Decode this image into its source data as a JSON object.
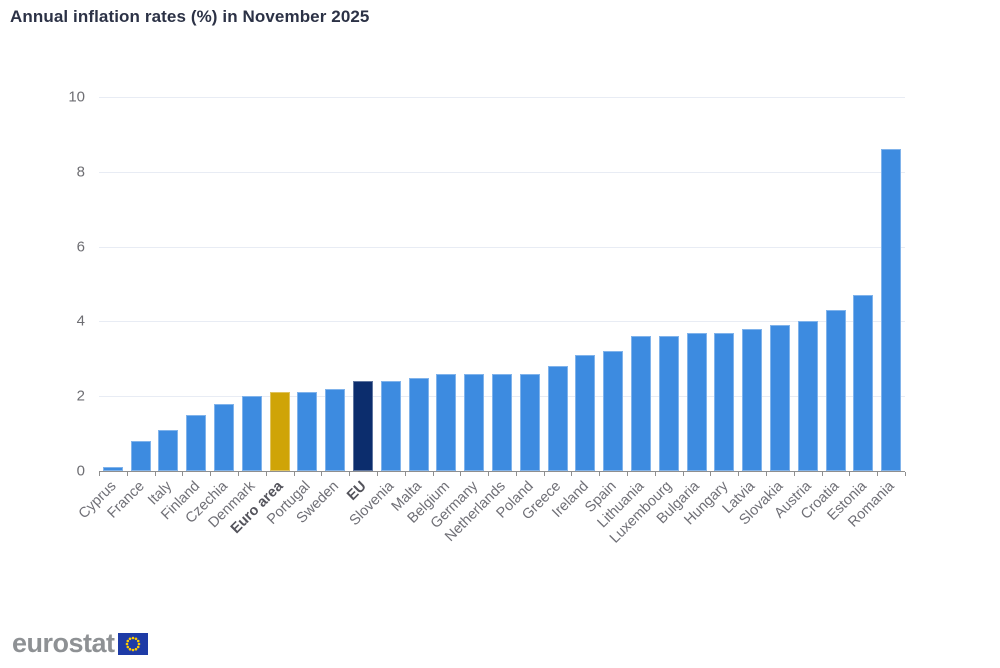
{
  "chart_data": {
    "type": "bar",
    "title": "Annual inflation rates (%) in November 2025",
    "categories": [
      "Cyprus",
      "France",
      "Italy",
      "Finland",
      "Czechia",
      "Denmark",
      "Euro area",
      "Portugal",
      "Sweden",
      "EU",
      "Slovenia",
      "Malta",
      "Belgium",
      "Germany",
      "Netherlands",
      "Poland",
      "Greece",
      "Ireland",
      "Spain",
      "Lithuania",
      "Luxembourg",
      "Bulgaria",
      "Hungary",
      "Latvia",
      "Slovakia",
      "Austria",
      "Croatia",
      "Estonia",
      "Romania"
    ],
    "values": [
      0.1,
      0.8,
      1.1,
      1.5,
      1.8,
      2.0,
      2.1,
      2.1,
      2.2,
      2.4,
      2.4,
      2.5,
      2.6,
      2.6,
      2.6,
      2.6,
      2.8,
      3.1,
      3.2,
      3.6,
      3.6,
      3.7,
      3.7,
      3.8,
      3.9,
      4.0,
      4.3,
      4.7,
      8.6
    ],
    "ylim": [
      0,
      10
    ],
    "yticks": [
      0,
      2,
      4,
      6,
      8,
      10
    ],
    "grid": true,
    "legend": "none",
    "xlabel": "",
    "ylabel": "",
    "bar_color_default": "#3D8BE0",
    "highlighted_bars": [
      {
        "category": "Euro area",
        "color": "#CFA407",
        "bold_label": true
      },
      {
        "category": "EU",
        "color": "#0C2D6D",
        "bold_label": true
      }
    ]
  },
  "colors": {
    "bar_default": "#3D8BE0",
    "euro_area_bar": "#CFA407",
    "eu_bar": "#0C2D6D",
    "gridline": "#E8ECF4",
    "axis": "#8F8F8F",
    "title_text": "#2C3246",
    "axis_label_text": "#6F6F76",
    "logo_gray": "#8E9194",
    "flag_blue": "#1E3BA6",
    "flag_star_yellow": "#FFCC00"
  },
  "footer": {
    "logo_text": "eurostat"
  }
}
